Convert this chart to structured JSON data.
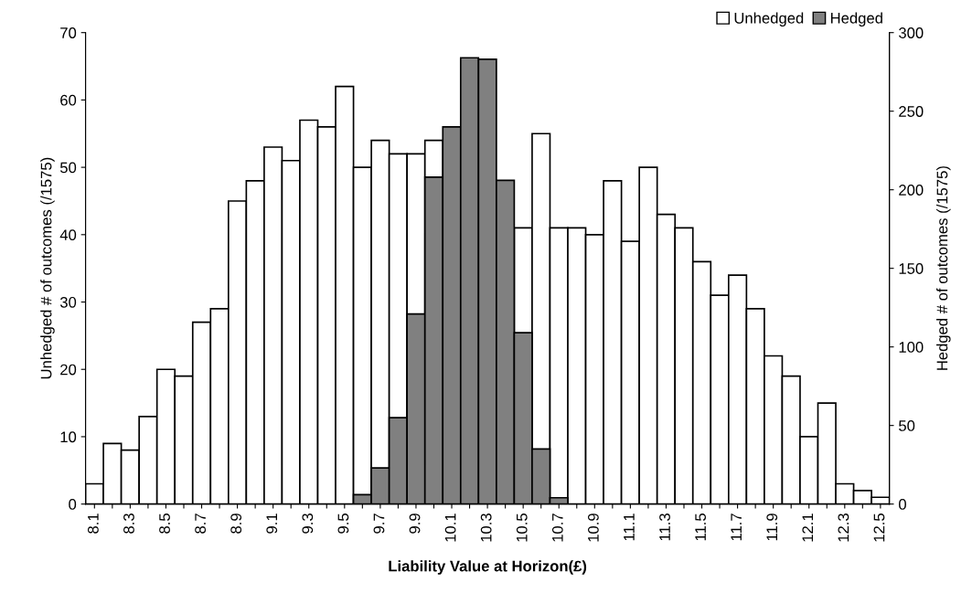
{
  "chart_data": {
    "type": "bar",
    "xlabel": "Liability Value at Horizon(£)",
    "ylabel": "Unhedged # of outcomes (/1575)",
    "y2label": "Hedged # of outcomes (/1575)",
    "categories": [
      "8.1",
      null,
      "8.3",
      null,
      "8.5",
      null,
      "8.7",
      null,
      "8.9",
      null,
      "9.1",
      null,
      "9.3",
      null,
      "9.5",
      null,
      "9.7",
      null,
      "9.9",
      null,
      "10.1",
      null,
      "10.3",
      null,
      "10.5",
      null,
      "10.7",
      null,
      "10.9",
      null,
      "11.1",
      null,
      "11.3",
      null,
      "11.5",
      null,
      "11.7",
      null,
      "11.9",
      null,
      "12.1",
      null,
      "12.3",
      null,
      "12.5"
    ],
    "series": [
      {
        "name": "Unhedged",
        "color": "#ffffff",
        "values": [
          3,
          9,
          8,
          13,
          20,
          19,
          27,
          29,
          45,
          48,
          53,
          51,
          57,
          56,
          62,
          50,
          54,
          52,
          52,
          54,
          null,
          null,
          null,
          null,
          41,
          55,
          41,
          41,
          40,
          48,
          39,
          50,
          43,
          41,
          36,
          31,
          34,
          29,
          22,
          19,
          10,
          15,
          3,
          2,
          1
        ]
      },
      {
        "name": "Hedged",
        "color": "#808080",
        "axis": "y2",
        "values": [
          null,
          null,
          null,
          null,
          null,
          null,
          null,
          null,
          null,
          null,
          null,
          null,
          null,
          null,
          null,
          6,
          23,
          55,
          121,
          208,
          240,
          284,
          283,
          206,
          109,
          35,
          4,
          null,
          null,
          null,
          null,
          null,
          null,
          null,
          null,
          null,
          null,
          null,
          null,
          null,
          null,
          null,
          null,
          null,
          null
        ]
      }
    ],
    "ylim": [
      0,
      70
    ],
    "yticks": [
      0,
      10,
      20,
      30,
      40,
      50,
      60,
      70
    ],
    "y2lim": [
      0,
      300
    ],
    "y2ticks": [
      0,
      50,
      100,
      150,
      200,
      250,
      300
    ],
    "legend": "top right",
    "grid": false
  }
}
